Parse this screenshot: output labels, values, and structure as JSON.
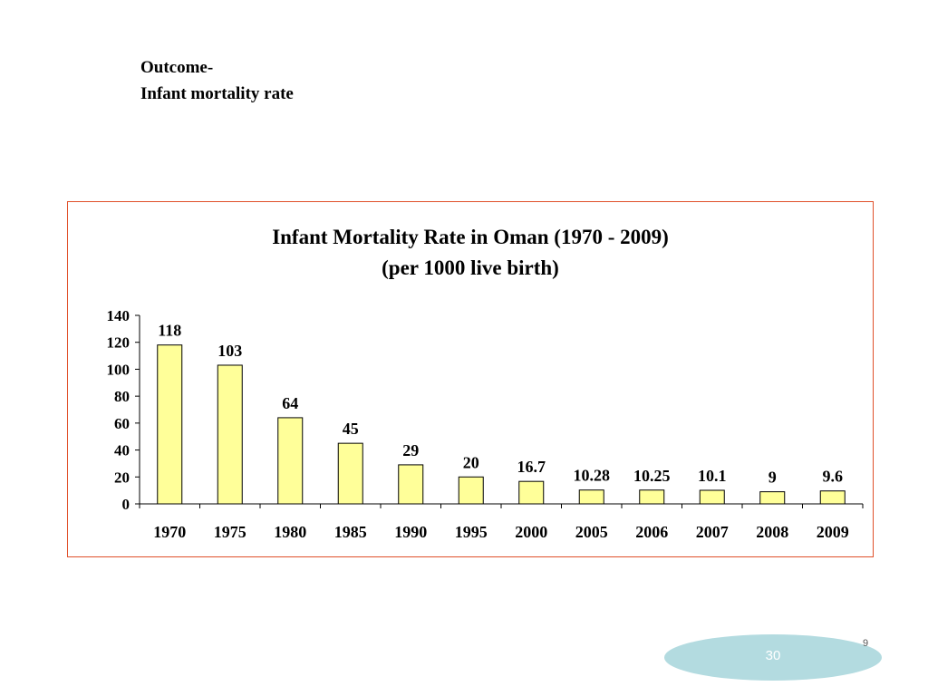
{
  "slide": {
    "heading_line1": "Outcome-",
    "heading_line2": "Infant mortality rate",
    "page_number": "30",
    "corner_mark": "9",
    "badge_color": "#b3dbe0",
    "frame_color": "#e0502a"
  },
  "chart_data": {
    "type": "bar",
    "title": "Infant Mortality Rate in Oman (1970 - 2009)",
    "subtitle": "(per 1000 live birth)",
    "xlabel": "",
    "ylabel": "",
    "categories": [
      "1970",
      "1975",
      "1980",
      "1985",
      "1990",
      "1995",
      "2000",
      "2005",
      "2006",
      "2007",
      "2008",
      "2009"
    ],
    "values": [
      118,
      103,
      64,
      45,
      29,
      20,
      16.7,
      10.28,
      10.25,
      10.1,
      9,
      9.6
    ],
    "data_labels": [
      "118",
      "103",
      "64",
      "45",
      "29",
      "20",
      "16.7",
      "10.28",
      "10.25",
      "10.1",
      "9",
      "9.6"
    ],
    "ylim": [
      0,
      140
    ],
    "yticks": [
      "0",
      "20",
      "40",
      "60",
      "80",
      "100",
      "120",
      "140"
    ],
    "grid": false,
    "legend": "none",
    "bar_color": "#ffff99",
    "bar_edge_color": "#000000"
  }
}
